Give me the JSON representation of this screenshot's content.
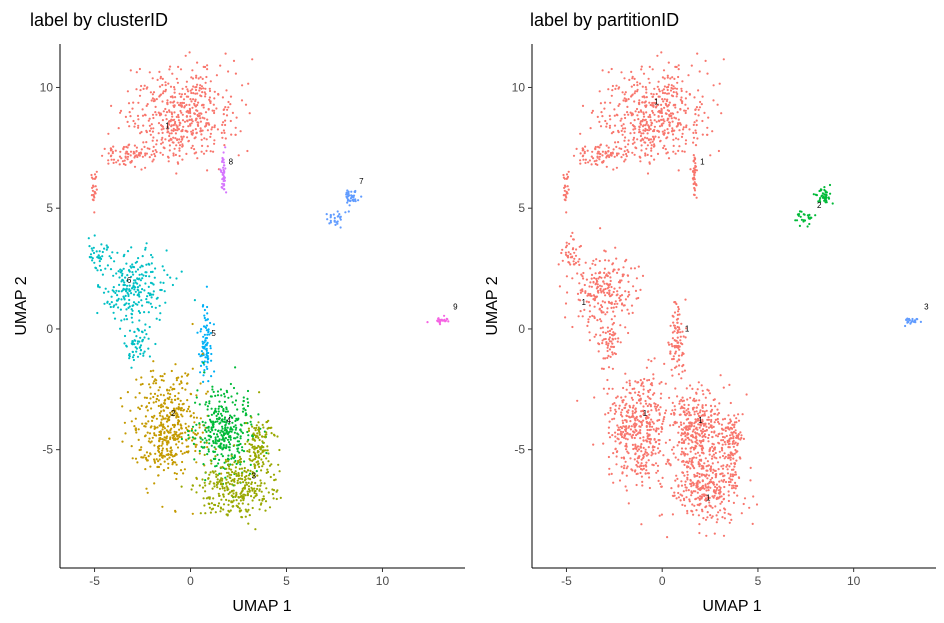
{
  "chart_data": [
    {
      "type": "scatter",
      "title": "label by clusterID",
      "xlabel": "UMAP 1",
      "ylabel": "UMAP 2",
      "xlim": [
        -6.8,
        14.3
      ],
      "ylim": [
        -9.9,
        11.8
      ],
      "xticks": [
        -5,
        0,
        5,
        10
      ],
      "yticks": [
        -5,
        0,
        5,
        10
      ],
      "grid": false,
      "legend": "none",
      "series": [
        {
          "label": "1",
          "color": "#F8766D",
          "label_pos": [
            -1.2,
            8.3
          ],
          "blobs": [
            [
              -0.5,
              8.9,
              2.5,
              1.7,
              500
            ],
            [
              -3.2,
              7.2,
              1.4,
              0.45,
              80
            ],
            [
              -5.0,
              6.0,
              0.2,
              0.9,
              25
            ]
          ]
        },
        {
          "label": "8",
          "color": "#D575FE",
          "label_pos": [
            2.1,
            6.8
          ],
          "blobs": [
            [
              1.7,
              6.4,
              0.12,
              0.85,
              40
            ]
          ]
        },
        {
          "label": "7",
          "color": "#619CFF",
          "label_pos": [
            8.9,
            6.0
          ],
          "blobs": [
            [
              8.4,
              5.5,
              0.4,
              0.35,
              40
            ],
            [
              7.5,
              4.6,
              0.6,
              0.3,
              25
            ]
          ]
        },
        {
          "label": "9",
          "color": "#F564E3",
          "label_pos": [
            13.8,
            0.8
          ],
          "blobs": [
            [
              13.1,
              0.35,
              0.5,
              0.12,
              25
            ]
          ]
        },
        {
          "label": "6",
          "color": "#00BFC4",
          "label_pos": [
            -3.2,
            1.9
          ],
          "blobs": [
            [
              -3.0,
              1.6,
              1.5,
              1.4,
              230
            ],
            [
              -4.8,
              3.1,
              0.5,
              0.5,
              40
            ],
            [
              -2.8,
              -0.6,
              0.6,
              0.8,
              60
            ]
          ]
        },
        {
          "label": "5",
          "color": "#00B0F6",
          "label_pos": [
            1.2,
            -0.3
          ],
          "blobs": [
            [
              0.8,
              -0.5,
              0.35,
              1.4,
              90
            ]
          ]
        },
        {
          "label": "2",
          "color": "#C49A00",
          "label_pos": [
            -0.9,
            -3.6
          ],
          "blobs": [
            [
              -1.2,
              -4.1,
              1.6,
              2.1,
              450
            ]
          ]
        },
        {
          "label": "4",
          "color": "#00BA38",
          "label_pos": [
            2.0,
            -3.9
          ],
          "blobs": [
            [
              1.8,
              -4.2,
              1.3,
              1.6,
              350
            ]
          ]
        },
        {
          "label": "3",
          "color": "#99A800",
          "label_pos": [
            3.3,
            -6.2
          ],
          "blobs": [
            [
              2.4,
              -6.6,
              1.7,
              1.2,
              330
            ],
            [
              3.6,
              -4.7,
              0.6,
              1.2,
              120
            ]
          ]
        }
      ]
    },
    {
      "type": "scatter",
      "title": "label by partitionID",
      "xlabel": "UMAP 1",
      "ylabel": "UMAP 2",
      "xlim": [
        -6.8,
        14.3
      ],
      "ylim": [
        -9.9,
        11.8
      ],
      "xticks": [
        -5,
        0,
        5,
        10
      ],
      "yticks": [
        -5,
        0,
        5,
        10
      ],
      "grid": false,
      "legend": "none",
      "series": [
        {
          "label": "1",
          "color": "#F8766D",
          "label_positions": [
            [
              -0.3,
              9.3
            ],
            [
              2.1,
              6.8
            ],
            [
              -4.1,
              1.0
            ],
            [
              1.3,
              -0.1
            ],
            [
              -0.9,
              -3.6
            ],
            [
              2.0,
              -3.9
            ],
            [
              2.4,
              -7.1
            ]
          ],
          "blobs": [
            [
              -0.5,
              8.9,
              2.5,
              1.7,
              500
            ],
            [
              -3.2,
              7.2,
              1.4,
              0.45,
              80
            ],
            [
              -5.0,
              6.0,
              0.2,
              0.9,
              25
            ],
            [
              1.7,
              6.4,
              0.12,
              0.85,
              40
            ],
            [
              -3.0,
              1.6,
              1.5,
              1.4,
              230
            ],
            [
              -4.8,
              3.1,
              0.5,
              0.5,
              40
            ],
            [
              -2.8,
              -0.6,
              0.6,
              0.8,
              60
            ],
            [
              0.8,
              -0.5,
              0.35,
              1.4,
              90
            ],
            [
              -1.2,
              -4.1,
              1.6,
              2.1,
              450
            ],
            [
              1.8,
              -4.2,
              1.3,
              1.6,
              350
            ],
            [
              2.4,
              -6.6,
              1.7,
              1.2,
              330
            ],
            [
              3.6,
              -4.7,
              0.6,
              1.2,
              120
            ]
          ]
        },
        {
          "label": "2",
          "color": "#00BA38",
          "label_pos": [
            8.2,
            5.0
          ],
          "blobs": [
            [
              8.4,
              5.5,
              0.4,
              0.35,
              40
            ],
            [
              7.5,
              4.6,
              0.6,
              0.3,
              25
            ]
          ]
        },
        {
          "label": "3",
          "color": "#619CFF",
          "label_pos": [
            13.8,
            0.8
          ],
          "blobs": [
            [
              13.1,
              0.35,
              0.5,
              0.12,
              25
            ]
          ]
        }
      ]
    }
  ]
}
